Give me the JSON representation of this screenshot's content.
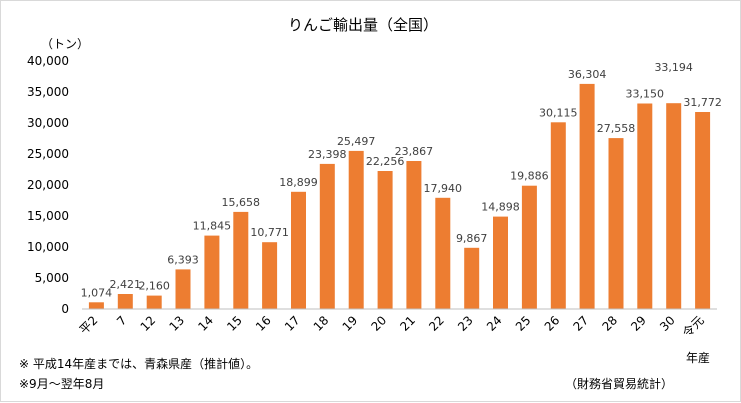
{
  "chart_data": {
    "type": "bar",
    "title": "りんご輸出量（全国）",
    "ylabel": "（トン）",
    "xlabel": "年産",
    "ylim": [
      0,
      40000
    ],
    "yticks": [
      "0",
      "5,000",
      "10,000",
      "15,000",
      "20,000",
      "25,000",
      "30,000",
      "35,000",
      "40,000"
    ],
    "ytick_values": [
      0,
      5000,
      10000,
      15000,
      20000,
      25000,
      30000,
      35000,
      40000
    ],
    "categories": [
      "平2",
      "7",
      "12",
      "13",
      "14",
      "15",
      "16",
      "17",
      "18",
      "19",
      "20",
      "21",
      "22",
      "23",
      "24",
      "25",
      "26",
      "27",
      "28",
      "29",
      "30",
      "令元"
    ],
    "values": [
      1074,
      2421,
      2160,
      6393,
      11845,
      15658,
      10771,
      18899,
      23398,
      25497,
      22256,
      23867,
      17940,
      9867,
      14898,
      19886,
      30115,
      36304,
      27558,
      33150,
      33194,
      31772
    ],
    "value_labels": [
      "1,074",
      "2,421",
      "2,160",
      "6,393",
      "11,845",
      "15,658",
      "10,771",
      "18,899",
      "23,398",
      "25,497",
      "22,256",
      "23,867",
      "17,940",
      "9,867",
      "14,898",
      "19,886",
      "30,115",
      "36,304",
      "27,558",
      "33,150",
      "33,194",
      "31,772"
    ],
    "bar_color": "#ed7d31",
    "grid": false
  },
  "notes": {
    "note1": "※ 平成14年産までは、青森県産（推計値）。",
    "note2": "※9月～翌年8月",
    "source": "（財務省貿易統計）"
  }
}
